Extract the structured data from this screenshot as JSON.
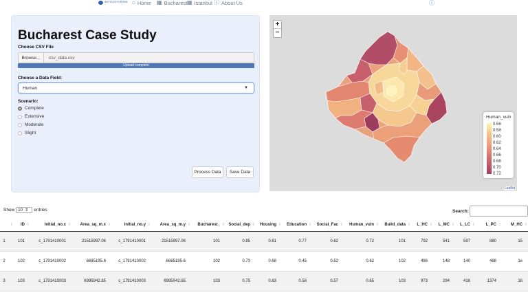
{
  "nav": {
    "logo_text": "INSTITUTE FOR RISK",
    "items": [
      "Home",
      "Bucharest",
      "Istanbul",
      "About Us"
    ]
  },
  "panel": {
    "title": "Bucharest Case Study",
    "file_label": "Choose CSV File",
    "browse_label": "Browse...",
    "file_name": "csv_data.csv",
    "upload_status": "Upload complete",
    "field_label": "Choose a Data Field:",
    "field_value": "Human",
    "scenario_label": "Scenario:",
    "scenarios": [
      "Complete",
      "Extensive",
      "Moderate",
      "Slight"
    ],
    "selected_scenario": "Complete",
    "process_button": "Process Data",
    "save_button": "Save Data"
  },
  "map": {
    "zoom_in": "+",
    "zoom_out": "−",
    "legend_title": "Human_vuln",
    "legend_ticks": [
      "0.56",
      "0.58",
      "0.60",
      "0.62",
      "0.64",
      "0.66",
      "0.68",
      "0.70",
      "0.72"
    ],
    "attribution": "Leaflet"
  },
  "table": {
    "show_label": "Show",
    "entries_value": "10",
    "entries_label": "entries",
    "search_label": "Search:",
    "columns": [
      "",
      "ID",
      "Initial_no.x",
      "Area_sq_m.x",
      "Initial_no.y",
      "Area_sq_m.y",
      "Bucharest_",
      "Social_dep",
      "Housing",
      "Education",
      "Social_Fac",
      "Human_vuln",
      "Build_data",
      "L_HC",
      "L_MC",
      "L_LC",
      "L_PC",
      "M_HC"
    ],
    "rows": [
      [
        "1",
        "101",
        "c_1791410001",
        "21515997.06",
        "c_1791410001",
        "21515997.06",
        "101",
        "0.85",
        "0.61",
        "0.77",
        "0.62",
        "0.72",
        "101",
        "792",
        "541",
        "597",
        "880",
        "15"
      ],
      [
        "2",
        "102",
        "c_1791410002",
        "6685195.6",
        "c_1791410002",
        "6685195.6",
        "102",
        "0.73",
        "0.68",
        "0.45",
        "0.52",
        "0.62",
        "102",
        "486",
        "148",
        "140",
        "468",
        "1e"
      ],
      [
        "3",
        "103",
        "c_1791410003",
        "6995942.85",
        "c_1791410003",
        "6995942.85",
        "103",
        "0.75",
        "0.63",
        "0.56",
        "0.57",
        "0.65",
        "103",
        "973",
        "294",
        "416",
        "1374",
        "16"
      ]
    ]
  }
}
